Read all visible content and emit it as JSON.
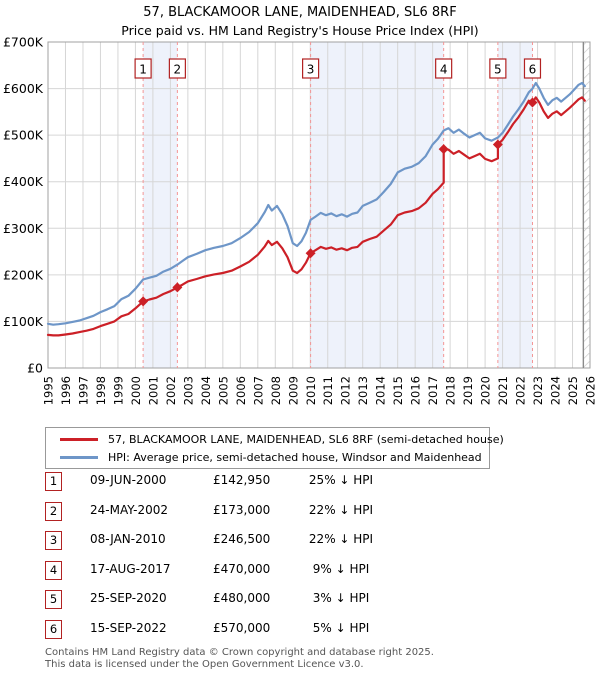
{
  "header": {
    "title": "57, BLACKAMOOR LANE, MAIDENHEAD, SL6 8RF",
    "subtitle": "Price paid vs. HM Land Registry's House Price Index (HPI)"
  },
  "chart_data": {
    "type": "line",
    "title": "57, BLACKAMOOR LANE, MAIDENHEAD, SL6 8RF — Price paid vs. HPI",
    "x_range": [
      1995,
      2026
    ],
    "y_range": [
      0,
      700000
    ],
    "grid": true,
    "legend_position": "below",
    "x_ticks": [
      1995,
      1996,
      1997,
      1998,
      1999,
      2000,
      2001,
      2002,
      2003,
      2004,
      2005,
      2006,
      2007,
      2008,
      2009,
      2010,
      2011,
      2012,
      2013,
      2014,
      2015,
      2016,
      2017,
      2018,
      2019,
      2020,
      2021,
      2022,
      2023,
      2024,
      2025,
      2026
    ],
    "y_ticks": {
      "values": [
        0,
        100000,
        200000,
        300000,
        400000,
        500000,
        600000,
        700000
      ],
      "labels": [
        "£0",
        "£100K",
        "£200K",
        "£300K",
        "£400K",
        "£500K",
        "£600K",
        "£700K"
      ]
    },
    "colors": {
      "price": "#cc2027",
      "hpi": "#6e96c8",
      "band": "#eef2fb",
      "event_line": "#f49595",
      "grid": "#d6d6d6",
      "frame": "#a0a0a0",
      "hatch": "#c4c4c4",
      "hatch_edge": "#8a8a8a",
      "event_box_border": "#b22222"
    },
    "ownership_bands": [
      [
        2000.44,
        2002.4
      ],
      [
        2010.02,
        2017.63
      ],
      [
        2020.73,
        2022.71
      ]
    ],
    "future_hatch_start": 2025.62,
    "events": [
      {
        "n": "1",
        "x": 2000.44,
        "price": 142950
      },
      {
        "n": "2",
        "x": 2002.4,
        "price": 173000
      },
      {
        "n": "3",
        "x": 2010.02,
        "price": 246500
      },
      {
        "n": "4",
        "x": 2017.63,
        "price": 470000
      },
      {
        "n": "5",
        "x": 2020.73,
        "price": 480000
      },
      {
        "n": "6",
        "x": 2022.71,
        "price": 570000
      }
    ],
    "series": [
      {
        "name": "57, BLACKAMOOR LANE, MAIDENHEAD, SL6 8RF (semi-detached house)",
        "color": "#cc2027",
        "points": [
          [
            1995,
            71000
          ],
          [
            1995.3,
            70000
          ],
          [
            1995.6,
            70000
          ],
          [
            1996,
            72000
          ],
          [
            1996.4,
            74000
          ],
          [
            1996.8,
            77000
          ],
          [
            1997.2,
            80000
          ],
          [
            1997.6,
            84000
          ],
          [
            1998,
            90000
          ],
          [
            1998.4,
            95000
          ],
          [
            1998.8,
            100000
          ],
          [
            1999.2,
            111000
          ],
          [
            1999.6,
            116000
          ],
          [
            2000,
            128000
          ],
          [
            2000.44,
            142950
          ],
          [
            2000.8,
            147000
          ],
          [
            2001.2,
            151000
          ],
          [
            2001.6,
            159000
          ],
          [
            2002,
            165000
          ],
          [
            2002.4,
            173000
          ],
          [
            2002.7,
            179000
          ],
          [
            2003,
            186000
          ],
          [
            2003.5,
            191000
          ],
          [
            2004,
            197000
          ],
          [
            2004.5,
            201000
          ],
          [
            2005,
            204000
          ],
          [
            2005.5,
            209000
          ],
          [
            2006,
            218000
          ],
          [
            2006.5,
            228000
          ],
          [
            2007,
            243000
          ],
          [
            2007.4,
            261000
          ],
          [
            2007.6,
            273000
          ],
          [
            2007.8,
            264000
          ],
          [
            2008.1,
            271000
          ],
          [
            2008.4,
            257000
          ],
          [
            2008.7,
            238000
          ],
          [
            2009,
            209000
          ],
          [
            2009.25,
            204000
          ],
          [
            2009.5,
            212000
          ],
          [
            2009.75,
            226000
          ],
          [
            2010.02,
            246500
          ],
          [
            2010.3,
            253000
          ],
          [
            2010.6,
            260000
          ],
          [
            2010.9,
            256000
          ],
          [
            2011.2,
            259000
          ],
          [
            2011.5,
            254000
          ],
          [
            2011.8,
            257000
          ],
          [
            2012.1,
            253000
          ],
          [
            2012.4,
            258000
          ],
          [
            2012.7,
            260000
          ],
          [
            2013,
            271000
          ],
          [
            2013.4,
            277000
          ],
          [
            2013.8,
            282000
          ],
          [
            2014.2,
            295000
          ],
          [
            2014.6,
            308000
          ],
          [
            2015,
            328000
          ],
          [
            2015.4,
            334000
          ],
          [
            2015.8,
            337000
          ],
          [
            2016.2,
            343000
          ],
          [
            2016.6,
            355000
          ],
          [
            2017,
            374000
          ],
          [
            2017.3,
            384000
          ],
          [
            2017.63,
            398000
          ],
          [
            2017.63,
            470000
          ],
          [
            2017.9,
            469000
          ],
          [
            2018.2,
            460000
          ],
          [
            2018.5,
            466000
          ],
          [
            2018.8,
            458000
          ],
          [
            2019.1,
            450000
          ],
          [
            2019.4,
            455000
          ],
          [
            2019.7,
            460000
          ],
          [
            2020,
            449000
          ],
          [
            2020.37,
            444000
          ],
          [
            2020.73,
            450000
          ],
          [
            2020.73,
            480000
          ],
          [
            2021,
            490000
          ],
          [
            2021.3,
            506000
          ],
          [
            2021.6,
            524000
          ],
          [
            2021.9,
            538000
          ],
          [
            2022.2,
            555000
          ],
          [
            2022.5,
            574000
          ],
          [
            2022.71,
            570000
          ],
          [
            2022.9,
            581000
          ],
          [
            2023.1,
            570000
          ],
          [
            2023.35,
            551000
          ],
          [
            2023.6,
            537000
          ],
          [
            2023.85,
            546000
          ],
          [
            2024.1,
            551000
          ],
          [
            2024.35,
            543000
          ],
          [
            2024.6,
            551000
          ],
          [
            2024.85,
            559000
          ],
          [
            2025.1,
            568000
          ],
          [
            2025.35,
            577000
          ],
          [
            2025.55,
            581000
          ],
          [
            2025.7,
            574000
          ]
        ]
      },
      {
        "name": "HPI: Average price, semi-detached house, Windsor and Maidenhead",
        "color": "#6e96c8",
        "points": [
          [
            1995,
            95000
          ],
          [
            1995.3,
            93000
          ],
          [
            1995.6,
            94000
          ],
          [
            1996,
            96000
          ],
          [
            1996.4,
            99000
          ],
          [
            1996.8,
            102000
          ],
          [
            1997.2,
            107000
          ],
          [
            1997.6,
            112000
          ],
          [
            1998,
            120000
          ],
          [
            1998.4,
            126000
          ],
          [
            1998.8,
            133000
          ],
          [
            1999.2,
            148000
          ],
          [
            1999.6,
            155000
          ],
          [
            2000,
            170000
          ],
          [
            2000.44,
            190000
          ],
          [
            2000.8,
            194000
          ],
          [
            2001.2,
            198000
          ],
          [
            2001.6,
            207000
          ],
          [
            2002,
            213000
          ],
          [
            2002.4,
            222000
          ],
          [
            2002.7,
            230000
          ],
          [
            2003,
            238000
          ],
          [
            2003.5,
            245000
          ],
          [
            2004,
            253000
          ],
          [
            2004.5,
            258000
          ],
          [
            2005,
            262000
          ],
          [
            2005.5,
            268000
          ],
          [
            2006,
            279000
          ],
          [
            2006.5,
            292000
          ],
          [
            2007,
            311000
          ],
          [
            2007.4,
            335000
          ],
          [
            2007.6,
            350000
          ],
          [
            2007.8,
            338000
          ],
          [
            2008.1,
            348000
          ],
          [
            2008.4,
            330000
          ],
          [
            2008.7,
            305000
          ],
          [
            2009,
            268000
          ],
          [
            2009.25,
            262000
          ],
          [
            2009.5,
            272000
          ],
          [
            2009.75,
            290000
          ],
          [
            2010.02,
            318000
          ],
          [
            2010.3,
            325000
          ],
          [
            2010.6,
            333000
          ],
          [
            2010.9,
            328000
          ],
          [
            2011.2,
            332000
          ],
          [
            2011.5,
            326000
          ],
          [
            2011.8,
            330000
          ],
          [
            2012.1,
            325000
          ],
          [
            2012.4,
            331000
          ],
          [
            2012.7,
            334000
          ],
          [
            2013,
            348000
          ],
          [
            2013.4,
            355000
          ],
          [
            2013.8,
            362000
          ],
          [
            2014.2,
            378000
          ],
          [
            2014.6,
            395000
          ],
          [
            2015,
            420000
          ],
          [
            2015.4,
            428000
          ],
          [
            2015.8,
            432000
          ],
          [
            2016.2,
            440000
          ],
          [
            2016.6,
            455000
          ],
          [
            2017,
            480000
          ],
          [
            2017.3,
            492000
          ],
          [
            2017.63,
            510000
          ],
          [
            2017.9,
            515000
          ],
          [
            2018.2,
            505000
          ],
          [
            2018.5,
            512000
          ],
          [
            2018.8,
            503000
          ],
          [
            2019.1,
            495000
          ],
          [
            2019.4,
            500000
          ],
          [
            2019.7,
            505000
          ],
          [
            2020,
            493000
          ],
          [
            2020.37,
            488000
          ],
          [
            2020.73,
            495000
          ],
          [
            2021,
            505000
          ],
          [
            2021.3,
            522000
          ],
          [
            2021.6,
            540000
          ],
          [
            2021.9,
            555000
          ],
          [
            2022.2,
            572000
          ],
          [
            2022.5,
            592000
          ],
          [
            2022.71,
            600000
          ],
          [
            2022.9,
            612000
          ],
          [
            2023.1,
            600000
          ],
          [
            2023.35,
            580000
          ],
          [
            2023.6,
            565000
          ],
          [
            2023.85,
            575000
          ],
          [
            2024.1,
            580000
          ],
          [
            2024.35,
            572000
          ],
          [
            2024.6,
            580000
          ],
          [
            2024.85,
            588000
          ],
          [
            2025.1,
            598000
          ],
          [
            2025.35,
            608000
          ],
          [
            2025.55,
            612000
          ],
          [
            2025.7,
            605000
          ]
        ]
      }
    ]
  },
  "legend": {
    "items": [
      {
        "label": "57, BLACKAMOOR LANE, MAIDENHEAD, SL6 8RF (semi-detached house)",
        "color": "#cc2027"
      },
      {
        "label": "HPI: Average price, semi-detached house, Windsor and Maidenhead",
        "color": "#6e96c8"
      }
    ]
  },
  "transactions": {
    "rows": [
      {
        "num": "1",
        "date": "09-JUN-2000",
        "price": "£142,950",
        "delta": "25% ↓ HPI"
      },
      {
        "num": "2",
        "date": "24-MAY-2002",
        "price": "£173,000",
        "delta": "22% ↓ HPI"
      },
      {
        "num": "3",
        "date": "08-JAN-2010",
        "price": "£246,500",
        "delta": "22% ↓ HPI"
      },
      {
        "num": "4",
        "date": "17-AUG-2017",
        "price": "£470,000",
        "delta": "9% ↓ HPI"
      },
      {
        "num": "5",
        "date": "25-SEP-2020",
        "price": "£480,000",
        "delta": "3% ↓ HPI"
      },
      {
        "num": "6",
        "date": "15-SEP-2022",
        "price": "£570,000",
        "delta": "5% ↓ HPI"
      }
    ]
  },
  "footer": {
    "line1": "Contains HM Land Registry data © Crown copyright and database right 2025.",
    "line2": "This data is licensed under the Open Government Licence v3.0."
  }
}
